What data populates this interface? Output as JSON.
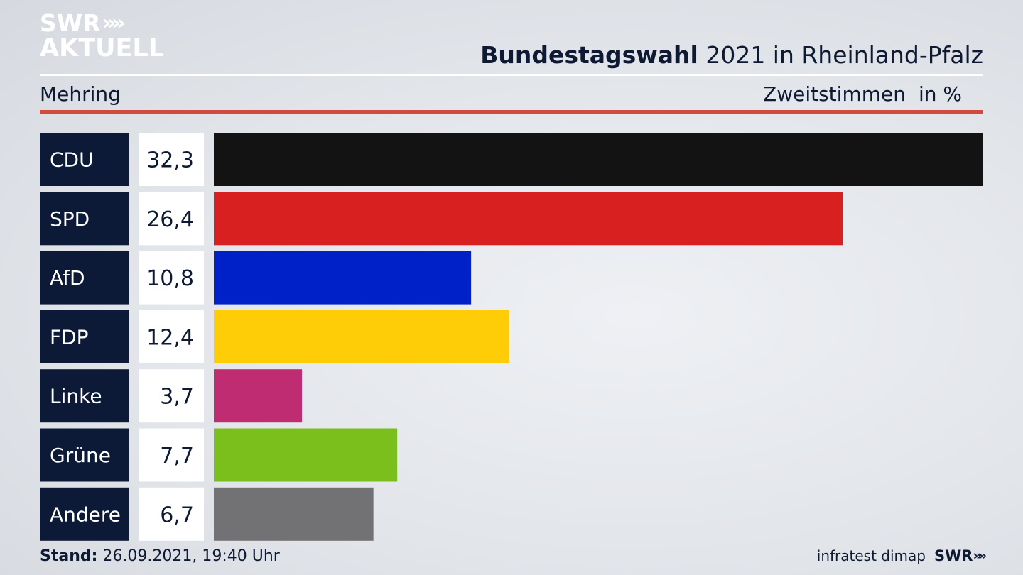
{
  "branding": {
    "logo_line1": "SWR",
    "logo_chevrons": "»",
    "logo_line2": "AKTUELL",
    "footer_logo": "SWR",
    "footer_chevrons": "»"
  },
  "header": {
    "title_bold": "Bundestagswahl",
    "title_rest": " 2021 in Rheinland-Pfalz",
    "region": "Mehring",
    "measure": "Zweitstimmen",
    "unit": "in %"
  },
  "chart_data": {
    "type": "bar",
    "orientation": "horizontal",
    "categories": [
      "CDU",
      "SPD",
      "AfD",
      "FDP",
      "Linke",
      "Grüne",
      "Andere"
    ],
    "values": [
      32.3,
      26.4,
      10.8,
      12.4,
      3.7,
      7.7,
      6.7
    ],
    "value_labels": [
      "32,3",
      "26,4",
      "10,8",
      "12,4",
      "3,7",
      "7,7",
      "6,7"
    ],
    "colors": [
      "#131313",
      "#d82020",
      "#0020c8",
      "#ffcc08",
      "#bf2c72",
      "#7bbf1c",
      "#727274"
    ],
    "xlim": [
      0,
      32.3
    ],
    "grid": false,
    "label_box_color": "#0d1a37",
    "value_box_color": "#ffffff"
  },
  "footer": {
    "stand_label": "Stand:",
    "stand_value": " 26.09.2021, 19:40 Uhr",
    "source": "infratest dimap"
  }
}
